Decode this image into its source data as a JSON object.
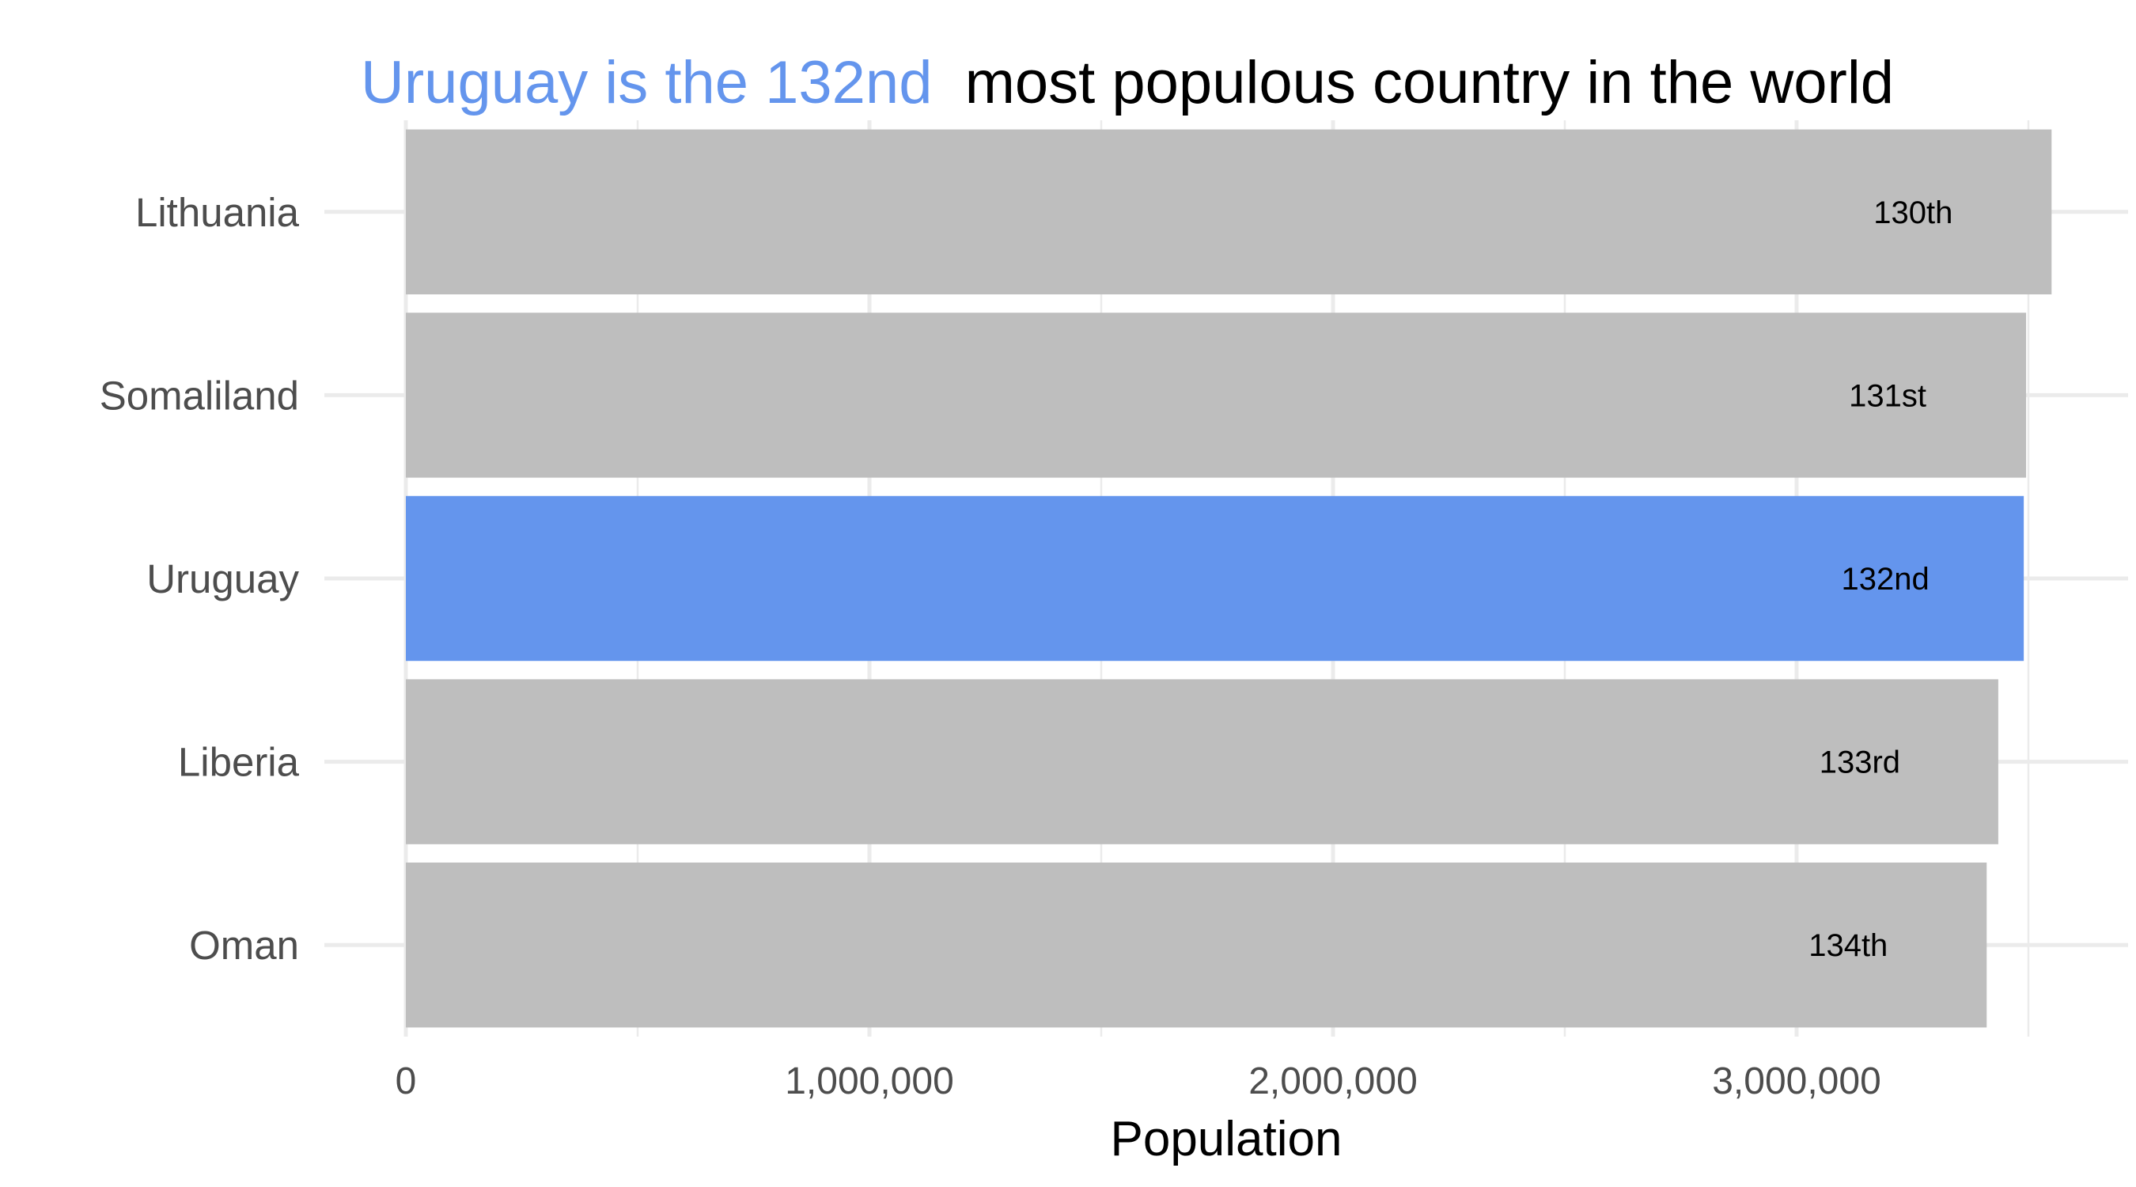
{
  "chart_data": {
    "type": "bar",
    "orientation": "horizontal",
    "title": {
      "highlight": "Uruguay is the 132nd",
      "rest": "most populous country in the world"
    },
    "xlabel": "Population",
    "ylabel": "",
    "xlim": [
      0,
      3700000
    ],
    "x_ticks": [
      {
        "value": 0,
        "label": "0"
      },
      {
        "value": 1000000,
        "label": "1,000,000"
      },
      {
        "value": 2000000,
        "label": "2,000,000"
      },
      {
        "value": 3000000,
        "label": "3,000,000"
      }
    ],
    "minor_grid": [
      500000,
      1500000,
      2500000,
      3500000
    ],
    "categories": [
      "Lithuania",
      "Somaliland",
      "Uruguay",
      "Liberia",
      "Oman"
    ],
    "values": [
      3550000,
      3495000,
      3490000,
      3435000,
      3410000
    ],
    "rank_labels": [
      "130th",
      "131st",
      "132nd",
      "133rd",
      "134th"
    ],
    "highlight_category": "Uruguay",
    "colors": {
      "highlight": "#6495ed",
      "default": "#bebebe",
      "grid": "#ebebeb"
    },
    "grid": true,
    "legend": "none"
  }
}
